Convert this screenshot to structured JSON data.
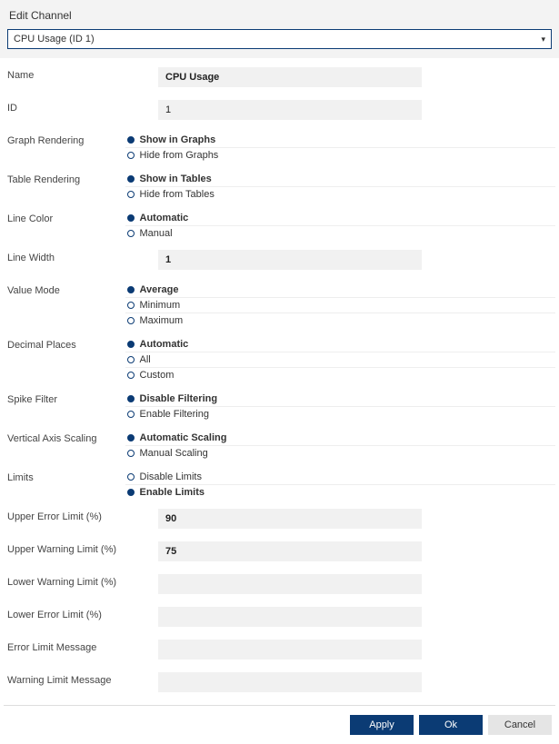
{
  "colors": {
    "accent": "#0b3b74",
    "inputBg": "#f1f1f1",
    "headerBg": "#f3f3f3"
  },
  "title": "Edit Channel",
  "dropdown": {
    "selected": "CPU Usage (ID 1)"
  },
  "fields": {
    "name": {
      "label": "Name",
      "value": "CPU Usage",
      "bold": true
    },
    "id": {
      "label": "ID",
      "value": "1"
    },
    "graphRendering": {
      "label": "Graph Rendering",
      "options": [
        "Show in Graphs",
        "Hide from Graphs"
      ],
      "selected": 0
    },
    "tableRendering": {
      "label": "Table Rendering",
      "options": [
        "Show in Tables",
        "Hide from Tables"
      ],
      "selected": 0
    },
    "lineColor": {
      "label": "Line Color",
      "options": [
        "Automatic",
        "Manual"
      ],
      "selected": 0
    },
    "lineWidth": {
      "label": "Line Width",
      "value": "1",
      "bold": true
    },
    "valueMode": {
      "label": "Value Mode",
      "options": [
        "Average",
        "Minimum",
        "Maximum"
      ],
      "selected": 0
    },
    "decimalPlaces": {
      "label": "Decimal Places",
      "options": [
        "Automatic",
        "All",
        "Custom"
      ],
      "selected": 0
    },
    "spikeFilter": {
      "label": "Spike Filter",
      "options": [
        "Disable Filtering",
        "Enable Filtering"
      ],
      "selected": 0
    },
    "verticalAxisScaling": {
      "label": "Vertical Axis Scaling",
      "options": [
        "Automatic Scaling",
        "Manual Scaling"
      ],
      "selected": 0
    },
    "limits": {
      "label": "Limits",
      "options": [
        "Disable Limits",
        "Enable Limits"
      ],
      "selected": 1
    },
    "upperErrorLimit": {
      "label": "Upper Error Limit (%)",
      "value": "90",
      "bold": true
    },
    "upperWarningLimit": {
      "label": "Upper Warning Limit (%)",
      "value": "75",
      "bold": true
    },
    "lowerWarningLimit": {
      "label": "Lower Warning Limit (%)",
      "value": ""
    },
    "lowerErrorLimit": {
      "label": "Lower Error Limit (%)",
      "value": ""
    },
    "errorLimitMessage": {
      "label": "Error Limit Message",
      "value": ""
    },
    "warningLimitMessage": {
      "label": "Warning Limit Message",
      "value": ""
    }
  },
  "buttons": {
    "apply": "Apply",
    "ok": "Ok",
    "cancel": "Cancel"
  }
}
